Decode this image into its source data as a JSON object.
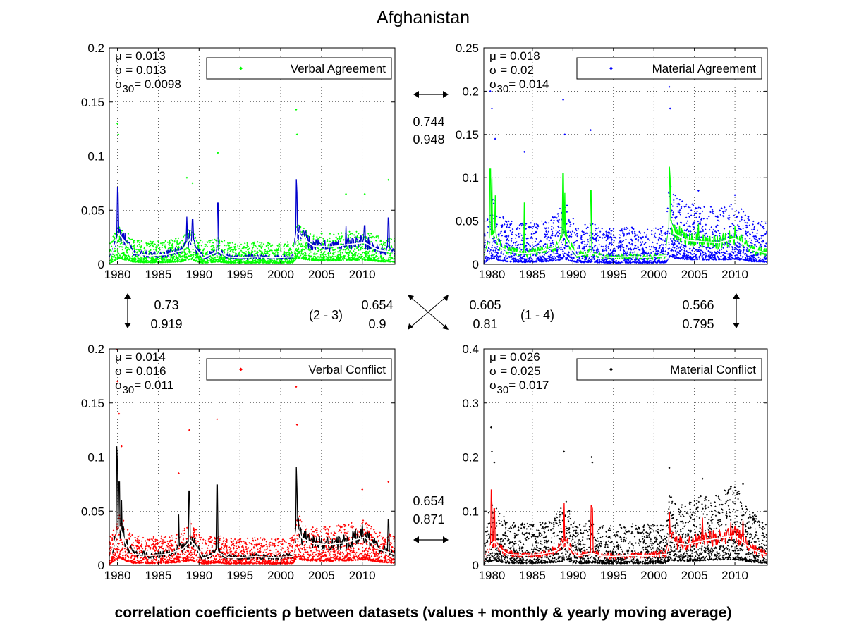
{
  "title": "Afghanistan",
  "xlabel": "correlation coefficients ρ between datasets (values + monthly & yearly moving average)",
  "chart_data": [
    {
      "id": 1,
      "type": "scatter",
      "title": "Verbal Agreement",
      "legend": "Verbal Agreement",
      "legend_position": "top-right",
      "color": "#00ff00",
      "monthly_color": "#0000cc",
      "yearly_color": "#ffffff",
      "xlim": [
        1979,
        2014
      ],
      "ylim": [
        0,
        0.2
      ],
      "xticks": [
        1980,
        1985,
        1990,
        1995,
        2000,
        2005,
        2010
      ],
      "yticks": [
        0,
        0.05,
        0.1,
        0.15,
        0.2
      ],
      "ytick_labels": [
        "0",
        "0.05",
        "0.1",
        "0.15",
        "0.2"
      ],
      "grid": true,
      "stats": {
        "mu": "0.013",
        "sigma": "0.013",
        "sigma30": "0.0098"
      },
      "spread": 0.025,
      "peaks": [
        [
          1980.0,
          0.13
        ],
        [
          1980.1,
          0.12
        ],
        [
          1988.5,
          0.08
        ],
        [
          1989.2,
          0.075
        ],
        [
          1992.3,
          0.103
        ],
        [
          2001.9,
          0.143
        ],
        [
          2002.0,
          0.12
        ],
        [
          2008,
          0.065
        ],
        [
          2010.3,
          0.065
        ],
        [
          2013.2,
          0.078
        ]
      ],
      "trend": [
        [
          1979,
          0.004
        ],
        [
          1979.8,
          0.02
        ],
        [
          1980.2,
          0.028
        ],
        [
          1981,
          0.02
        ],
        [
          1982,
          0.01
        ],
        [
          1984,
          0.008
        ],
        [
          1986,
          0.009
        ],
        [
          1988,
          0.013
        ],
        [
          1988.8,
          0.023
        ],
        [
          1989.5,
          0.015
        ],
        [
          1990.5,
          0.006
        ],
        [
          1992.3,
          0.012
        ],
        [
          1993.5,
          0.007
        ],
        [
          1995,
          0.006
        ],
        [
          1997,
          0.007
        ],
        [
          1999,
          0.006
        ],
        [
          2001.5,
          0.007
        ],
        [
          2002,
          0.03
        ],
        [
          2002.6,
          0.025
        ],
        [
          2004,
          0.017
        ],
        [
          2006,
          0.016
        ],
        [
          2008,
          0.018
        ],
        [
          2010.3,
          0.02
        ],
        [
          2012,
          0.013
        ],
        [
          2014,
          0.011
        ]
      ]
    },
    {
      "id": 2,
      "type": "scatter",
      "title": "Material Agreement",
      "legend": "Material Agreement",
      "legend_position": "top-right",
      "color": "#0000ff",
      "monthly_color": "#00ff00",
      "yearly_color": "#ffffff",
      "xlim": [
        1979,
        2014
      ],
      "ylim": [
        0,
        0.25
      ],
      "xticks": [
        1980,
        1985,
        1990,
        1995,
        2000,
        2005,
        2010
      ],
      "yticks": [
        0,
        0.05,
        0.1,
        0.15,
        0.2,
        0.25
      ],
      "ytick_labels": [
        "0",
        "0.05",
        "0.1",
        "0.15",
        "0.2",
        "0.25"
      ],
      "grid": true,
      "stats": {
        "mu": "0.018",
        "sigma": "0.02",
        "sigma30": "0.014"
      },
      "spread": 0.05,
      "peaks": [
        [
          1979.8,
          0.2
        ],
        [
          1980.0,
          0.18
        ],
        [
          1980.4,
          0.145
        ],
        [
          1984,
          0.13
        ],
        [
          1988.8,
          0.19
        ],
        [
          1989.0,
          0.15
        ],
        [
          1992.2,
          0.155
        ],
        [
          2001.9,
          0.205
        ],
        [
          2002.0,
          0.18
        ],
        [
          2005.5,
          0.085
        ],
        [
          2010,
          0.08
        ]
      ],
      "trend": [
        [
          1979,
          0.006
        ],
        [
          1979.8,
          0.03
        ],
        [
          1980.3,
          0.035
        ],
        [
          1981,
          0.02
        ],
        [
          1982,
          0.015
        ],
        [
          1984,
          0.012
        ],
        [
          1986,
          0.015
        ],
        [
          1988,
          0.02
        ],
        [
          1988.9,
          0.033
        ],
        [
          1989.6,
          0.022
        ],
        [
          1990.5,
          0.01
        ],
        [
          1992.3,
          0.013
        ],
        [
          1993.5,
          0.009
        ],
        [
          1995,
          0.008
        ],
        [
          1997,
          0.009
        ],
        [
          1999,
          0.008
        ],
        [
          2001.5,
          0.01
        ],
        [
          2002,
          0.05
        ],
        [
          2002.6,
          0.035
        ],
        [
          2004,
          0.028
        ],
        [
          2006,
          0.026
        ],
        [
          2008,
          0.025
        ],
        [
          2010,
          0.03
        ],
        [
          2012,
          0.017
        ],
        [
          2014,
          0.013
        ]
      ]
    },
    {
      "id": 3,
      "type": "scatter",
      "title": "Verbal Conflict",
      "legend": "Verbal Conflict",
      "legend_position": "top-right",
      "color": "#ff0000",
      "monthly_color": "#000000",
      "yearly_color": "#ffffff",
      "xlim": [
        1979,
        2014
      ],
      "ylim": [
        0,
        0.2
      ],
      "xticks": [
        1980,
        1985,
        1990,
        1995,
        2000,
        2005,
        2010
      ],
      "yticks": [
        0,
        0.05,
        0.1,
        0.15,
        0.2
      ],
      "ytick_labels": [
        "0",
        "0.05",
        "0.1",
        "0.15",
        "0.2"
      ],
      "grid": true,
      "stats": {
        "mu": "0.014",
        "sigma": "0.016",
        "sigma30": "0.011"
      },
      "spread": 0.03,
      "peaks": [
        [
          1979.9,
          0.2
        ],
        [
          1980.0,
          0.17
        ],
        [
          1980.2,
          0.14
        ],
        [
          1980.5,
          0.11
        ],
        [
          1987.5,
          0.085
        ],
        [
          1988.8,
          0.125
        ],
        [
          1992.2,
          0.135
        ],
        [
          2001.9,
          0.165
        ],
        [
          2002.0,
          0.13
        ],
        [
          2010,
          0.07
        ],
        [
          2013.2,
          0.077
        ]
      ],
      "trend": [
        [
          1979,
          0.005
        ],
        [
          1979.8,
          0.025
        ],
        [
          1980.3,
          0.035
        ],
        [
          1981,
          0.02
        ],
        [
          1982,
          0.01
        ],
        [
          1984,
          0.009
        ],
        [
          1986,
          0.01
        ],
        [
          1988,
          0.015
        ],
        [
          1989,
          0.023
        ],
        [
          1989.8,
          0.015
        ],
        [
          1990.5,
          0.006
        ],
        [
          1992.3,
          0.012
        ],
        [
          1993.5,
          0.007
        ],
        [
          1995,
          0.007
        ],
        [
          1997,
          0.008
        ],
        [
          1999,
          0.007
        ],
        [
          2001.5,
          0.008
        ],
        [
          2002,
          0.035
        ],
        [
          2002.6,
          0.025
        ],
        [
          2004,
          0.02
        ],
        [
          2006,
          0.019
        ],
        [
          2008,
          0.021
        ],
        [
          2010.3,
          0.026
        ],
        [
          2012,
          0.015
        ],
        [
          2014,
          0.01
        ]
      ]
    },
    {
      "id": 4,
      "type": "scatter",
      "title": "Material Conflict",
      "legend": "Material Conflict",
      "legend_position": "top-right",
      "color": "#000000",
      "monthly_color": "#ff0000",
      "yearly_color": "#ffffff",
      "xlim": [
        1979,
        2014
      ],
      "ylim": [
        0,
        0.4
      ],
      "xticks": [
        1980,
        1985,
        1990,
        1995,
        2000,
        2005,
        2010
      ],
      "yticks": [
        0,
        0.1,
        0.2,
        0.3,
        0.4
      ],
      "ytick_labels": [
        "0",
        "0.1",
        "0.2",
        "0.3",
        "0.4"
      ],
      "grid": true,
      "stats": {
        "mu": "0.026",
        "sigma": "0.025",
        "sigma30": "0.017"
      },
      "spread": 0.07,
      "peaks": [
        [
          1979.9,
          0.255
        ],
        [
          1980.0,
          0.21
        ],
        [
          1980.3,
          0.19
        ],
        [
          1988.9,
          0.21
        ],
        [
          1992.3,
          0.2
        ],
        [
          1992.4,
          0.19
        ],
        [
          2001.9,
          0.18
        ],
        [
          2006,
          0.16
        ],
        [
          2009.5,
          0.145
        ],
        [
          2011,
          0.15
        ]
      ],
      "trend": [
        [
          1979,
          0.01
        ],
        [
          1979.8,
          0.035
        ],
        [
          1980.3,
          0.045
        ],
        [
          1981,
          0.03
        ],
        [
          1982,
          0.02
        ],
        [
          1984,
          0.018
        ],
        [
          1986,
          0.02
        ],
        [
          1988,
          0.027
        ],
        [
          1989,
          0.043
        ],
        [
          1989.8,
          0.03
        ],
        [
          1990.5,
          0.017
        ],
        [
          1992.3,
          0.022
        ],
        [
          1993.5,
          0.017
        ],
        [
          1995,
          0.016
        ],
        [
          1997,
          0.018
        ],
        [
          1999,
          0.017
        ],
        [
          2001.5,
          0.02
        ],
        [
          2002,
          0.05
        ],
        [
          2002.6,
          0.042
        ],
        [
          2004,
          0.038
        ],
        [
          2006,
          0.045
        ],
        [
          2008,
          0.05
        ],
        [
          2010,
          0.055
        ],
        [
          2012,
          0.03
        ],
        [
          2014,
          0.018
        ]
      ]
    }
  ],
  "correlations": {
    "pair_1_2": {
      "values": [
        "0.744",
        "0.948"
      ]
    },
    "pair_1_3": {
      "values": [
        "0.73",
        "0.919"
      ]
    },
    "pair_2_3": {
      "label": "(2 - 3)",
      "values": [
        "0.654",
        "0.9"
      ]
    },
    "pair_1_4": {
      "label": "(1 - 4)",
      "values": [
        "0.605",
        "0.81"
      ]
    },
    "pair_2_4": {
      "values": [
        "0.566",
        "0.795"
      ]
    },
    "pair_3_4": {
      "values": [
        "0.654",
        "0.871"
      ]
    }
  },
  "stat_labels": {
    "mu": "μ",
    "sigma": "σ",
    "sigma30_base": "σ",
    "sigma30_sub": "30",
    "eq": "= "
  }
}
